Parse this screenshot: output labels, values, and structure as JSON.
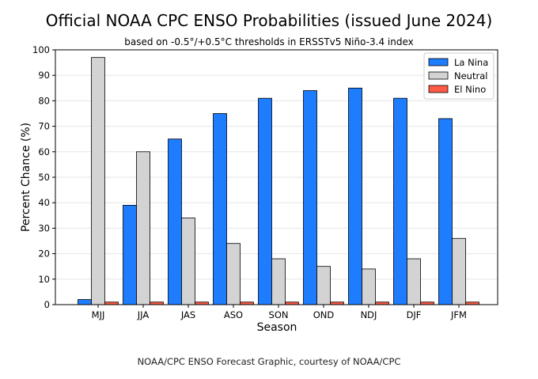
{
  "chart_data": {
    "type": "bar",
    "title": "Official NOAA CPC ENSO Probabilities (issued June 2024)",
    "subtitle": "based on -0.5°/+0.5°C thresholds in ERSSTv5 Niño-3.4 index",
    "xlabel": "Season",
    "ylabel": "Percent Chance (%)",
    "ylim": [
      0,
      100
    ],
    "yticks": [
      0,
      10,
      20,
      30,
      40,
      50,
      60,
      70,
      80,
      90,
      100
    ],
    "grid": true,
    "legend_position": "top-right",
    "categories": [
      "MJJ",
      "JJA",
      "JAS",
      "ASO",
      "SON",
      "OND",
      "NDJ",
      "DJF",
      "JFM"
    ],
    "series": [
      {
        "name": "La Nina",
        "color": "#1e7cff",
        "values": [
          2,
          39,
          65,
          75,
          81,
          84,
          85,
          81,
          73
        ]
      },
      {
        "name": "Neutral",
        "color": "#d3d3d3",
        "values": [
          97,
          60,
          34,
          24,
          18,
          15,
          14,
          18,
          26
        ]
      },
      {
        "name": "El Nino",
        "color": "#ff5a45",
        "values": [
          1,
          1,
          1,
          1,
          1,
          1,
          1,
          1,
          1
        ]
      }
    ]
  },
  "footer": "NOAA/CPC ENSO Forecast Graphic, courtesy of NOAA/CPC"
}
